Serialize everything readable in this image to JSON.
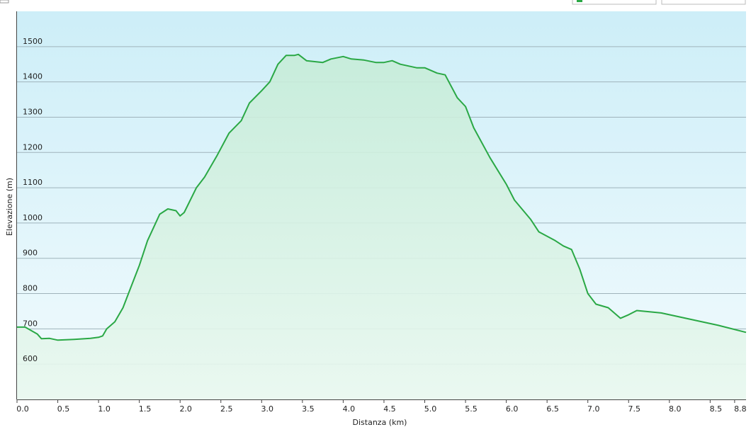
{
  "chart_data": {
    "type": "area",
    "x_label": "Distanza  (km)",
    "y_label": "Elevazione (m)",
    "x": [
      0,
      0.1,
      0.25,
      0.3,
      0.4,
      0.5,
      0.7,
      0.9,
      1.0,
      1.05,
      1.1,
      1.2,
      1.3,
      1.4,
      1.5,
      1.6,
      1.7,
      1.75,
      1.85,
      1.95,
      2.0,
      2.05,
      2.2,
      2.3,
      2.45,
      2.6,
      2.75,
      2.85,
      3.0,
      3.1,
      3.2,
      3.3,
      3.4,
      3.45,
      3.55,
      3.75,
      3.85,
      4.0,
      4.1,
      4.25,
      4.4,
      4.5,
      4.6,
      4.7,
      4.9,
      5.0,
      5.15,
      5.25,
      5.4,
      5.5,
      5.6,
      5.8,
      6.0,
      6.1,
      6.3,
      6.4,
      6.6,
      6.7,
      6.8,
      6.9,
      7.0,
      7.1,
      7.25,
      7.4,
      7.5,
      7.6,
      7.9,
      8.2,
      8.6,
      8.94
    ],
    "series": [
      {
        "name": "Elevazione",
        "color": "#2aa845",
        "values": [
          705,
          705,
          685,
          672,
          673,
          668,
          670,
          673,
          676,
          680,
          700,
          720,
          760,
          820,
          880,
          950,
          1000,
          1025,
          1040,
          1035,
          1020,
          1030,
          1100,
          1130,
          1190,
          1255,
          1290,
          1340,
          1375,
          1400,
          1450,
          1475,
          1475,
          1478,
          1460,
          1455,
          1465,
          1472,
          1465,
          1462,
          1455,
          1455,
          1460,
          1450,
          1440,
          1440,
          1425,
          1420,
          1355,
          1330,
          1270,
          1185,
          1110,
          1065,
          1010,
          975,
          950,
          935,
          925,
          870,
          800,
          770,
          760,
          730,
          740,
          752,
          745,
          730,
          710,
          690
        ]
      }
    ],
    "xlim": [
      0,
      8.94
    ],
    "ylim": [
      500,
      1600
    ],
    "xticks": [
      {
        "value": 0,
        "label": "0.0"
      },
      0.5,
      {
        "value": 1,
        "label": "1.0"
      },
      1.5,
      {
        "value": 2,
        "label": "2.0"
      },
      2.5,
      {
        "value": 3,
        "label": "3.0"
      },
      3.5,
      {
        "value": 4,
        "label": "4.0"
      },
      4.5,
      {
        "value": 5,
        "label": "5.0"
      },
      5.5,
      {
        "value": 6,
        "label": "6.0"
      },
      6.5,
      {
        "value": 7,
        "label": "7.0"
      },
      7.5,
      {
        "value": 8,
        "label": "8.0"
      },
      8.5,
      8.8
    ],
    "yticks": [
      600,
      700,
      800,
      900,
      1000,
      1100,
      1200,
      1300,
      1400,
      1500
    ],
    "grid": true
  }
}
